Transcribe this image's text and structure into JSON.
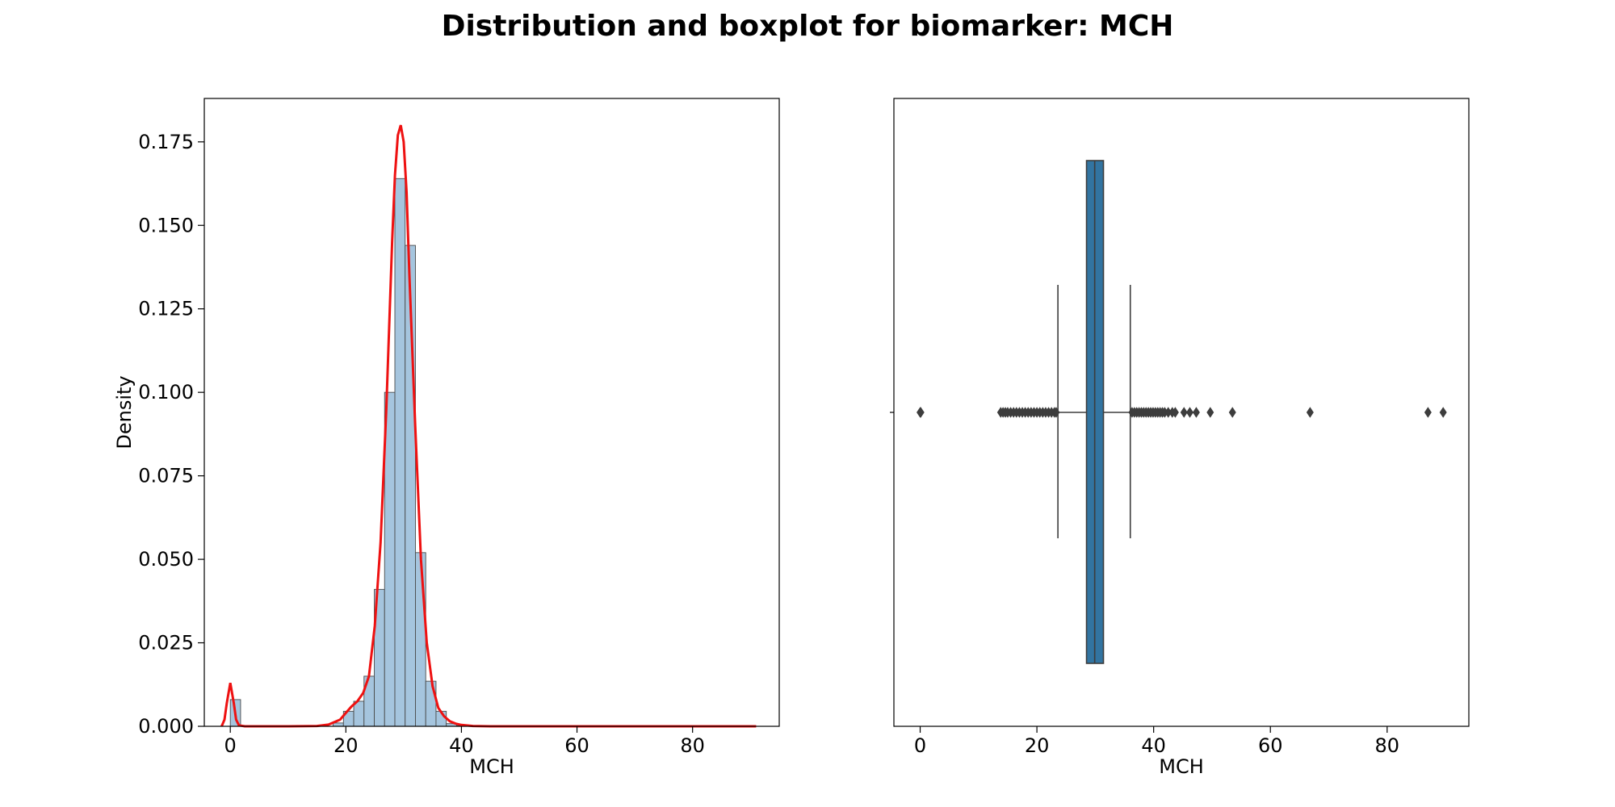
{
  "figure": {
    "title": "Distribution and boxplot for biomarker: MCH"
  },
  "chart_data": [
    {
      "type": "bar",
      "subtype": "histogram-with-kde",
      "title": "",
      "xlabel": "MCH",
      "ylabel": "Density",
      "xlim": [
        -4.5,
        95
      ],
      "ylim": [
        0,
        0.188
      ],
      "xticks": [
        0,
        20,
        40,
        60,
        80
      ],
      "yticks": [
        0.0,
        0.025,
        0.05,
        0.075,
        0.1,
        0.125,
        0.15,
        0.175
      ],
      "xtick_labels": [
        "0",
        "20",
        "40",
        "60",
        "80"
      ],
      "ytick_labels": [
        "0.000",
        "0.025",
        "0.050",
        "0.075",
        "0.100",
        "0.125",
        "0.150",
        "0.175"
      ],
      "bin_edges": [
        0.0,
        1.78,
        3.56,
        5.34,
        7.12,
        8.9,
        10.68,
        12.46,
        14.24,
        16.02,
        17.8,
        19.58,
        21.36,
        23.14,
        24.92,
        26.7,
        28.48,
        30.26,
        32.04,
        33.82,
        35.6,
        37.38,
        39.16,
        40.94,
        42.72,
        44.5
      ],
      "bin_densities": [
        0.008,
        0,
        0,
        0,
        0,
        0,
        0,
        0,
        0,
        0,
        0.001,
        0.0045,
        0.0075,
        0.015,
        0.041,
        0.1,
        0.164,
        0.144,
        0.052,
        0.0135,
        0.0045,
        0.0008,
        0.0002,
        0.0001,
        0
      ],
      "kde": {
        "x": [
          -1.5,
          -1.0,
          -0.6,
          0.0,
          0.6,
          1.0,
          1.5,
          2.5,
          5,
          10,
          15,
          17,
          19,
          20,
          21,
          22,
          23,
          24,
          25,
          26,
          27,
          28,
          28.5,
          29,
          29.5,
          30,
          30.5,
          31,
          32,
          33,
          34,
          35,
          36,
          37,
          38,
          39,
          40,
          42,
          45,
          50,
          60,
          70,
          80,
          91
        ],
        "y": [
          0,
          0.002,
          0.007,
          0.013,
          0.007,
          0.002,
          0.0003,
          0,
          0,
          0,
          0.0001,
          0.0005,
          0.002,
          0.004,
          0.006,
          0.0075,
          0.01,
          0.015,
          0.03,
          0.055,
          0.095,
          0.145,
          0.165,
          0.177,
          0.18,
          0.175,
          0.16,
          0.135,
          0.09,
          0.05,
          0.025,
          0.012,
          0.0055,
          0.003,
          0.0015,
          0.0008,
          0.0004,
          0.0001,
          0,
          0,
          0,
          0,
          0,
          0
        ],
        "color": "#ee1111"
      },
      "bar_color": "#a5c5de",
      "bar_edge_color": "#4a4a4a"
    },
    {
      "type": "boxplot",
      "title": "",
      "xlabel": "MCH",
      "xlim": [
        -4.5,
        94
      ],
      "xticks": [
        0,
        20,
        40,
        60,
        80
      ],
      "xtick_labels": [
        "0",
        "20",
        "40",
        "60",
        "80"
      ],
      "q1": 28.5,
      "median": 29.9,
      "q3": 31.4,
      "whisker_low": 23.6,
      "whisker_high": 36.0,
      "outliers": [
        0,
        0.1,
        13.8,
        14.2,
        14.6,
        15.0,
        15.5,
        16.0,
        16.5,
        17.0,
        17.5,
        18.0,
        18.5,
        19.0,
        19.5,
        20.0,
        20.5,
        21.0,
        21.5,
        22.0,
        22.5,
        23.0,
        23.3,
        36.3,
        36.7,
        37.1,
        37.5,
        37.9,
        38.3,
        38.7,
        39.1,
        39.5,
        39.9,
        40.3,
        40.7,
        41.1,
        41.5,
        41.9,
        42.5,
        43.2,
        43.7,
        45.2,
        46.2,
        47.3,
        49.7,
        53.5,
        66.8,
        87.0,
        89.6
      ],
      "box_color": "#3274a1",
      "line_color": "#3d3d3d"
    }
  ]
}
